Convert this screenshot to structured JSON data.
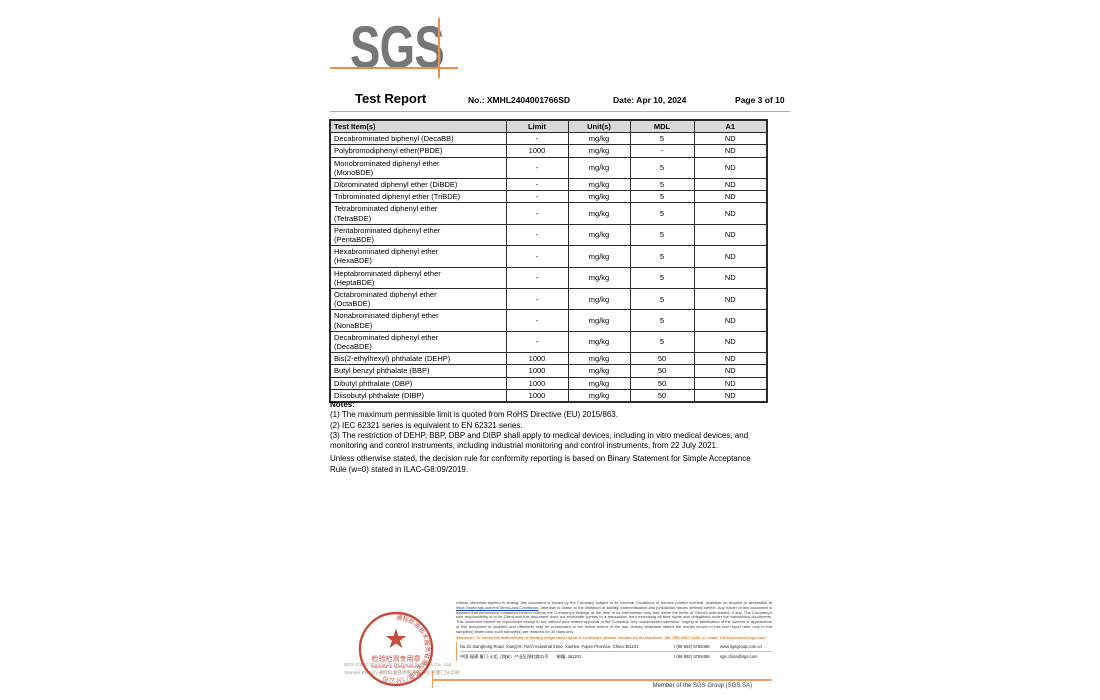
{
  "logo": {
    "text": "SGS"
  },
  "header": {
    "title": "Test Report",
    "report_no": "No.: XMHL2404001766SD",
    "date": "Date: Apr 10, 2024",
    "page": "Page 3 of  10"
  },
  "table": {
    "columns": [
      "Test Item(s)",
      "Limit",
      "Unit(s)",
      "MDL",
      "A1"
    ],
    "rows": [
      {
        "item": "Decabrominated biphenyl (DecaBB)",
        "limit": "-",
        "unit": "mg/kg",
        "mdl": "5",
        "a1": "ND"
      },
      {
        "item": "Polybromodiphenyl ether(PBDE)",
        "limit": "1000",
        "unit": "mg/kg",
        "mdl": "-",
        "a1": "ND"
      },
      {
        "item": "Monobrominated diphenyl ether\n(MonoBDE)",
        "limit": "-",
        "unit": "mg/kg",
        "mdl": "5",
        "a1": "ND"
      },
      {
        "item": "Dibrominated diphenyl ether (DiBDE)",
        "limit": "-",
        "unit": "mg/kg",
        "mdl": "5",
        "a1": "ND"
      },
      {
        "item": "Tribrominated diphenyl ether (TriBDE)",
        "limit": "-",
        "unit": "mg/kg",
        "mdl": "5",
        "a1": "ND"
      },
      {
        "item": "Tetrabrominated diphenyl ether\n(TetraBDE)",
        "limit": "-",
        "unit": "mg/kg",
        "mdl": "5",
        "a1": "ND"
      },
      {
        "item": "Pentabrominated diphenyl ether\n(PentaBDE)",
        "limit": "-",
        "unit": "mg/kg",
        "mdl": "5",
        "a1": "ND"
      },
      {
        "item": "Hexabrominated diphenyl ether\n(HexaBDE)",
        "limit": "-",
        "unit": "mg/kg",
        "mdl": "5",
        "a1": "ND"
      },
      {
        "item": "Heptabrominated diphenyl ether\n(HeptaBDE)",
        "limit": "-",
        "unit": "mg/kg",
        "mdl": "5",
        "a1": "ND"
      },
      {
        "item": "Octabrominated diphenyl ether\n(OctaBDE)",
        "limit": "-",
        "unit": "mg/kg",
        "mdl": "5",
        "a1": "ND"
      },
      {
        "item": "Nonabrominated diphenyl ether\n(NonaBDE)",
        "limit": "-",
        "unit": "mg/kg",
        "mdl": "5",
        "a1": "ND"
      },
      {
        "item": "Decabrominated diphenyl ether\n(DecaBDE)",
        "limit": "-",
        "unit": "mg/kg",
        "mdl": "5",
        "a1": "ND"
      },
      {
        "item": "Bis(2-ethylhexyl) phthalate (DEHP)",
        "limit": "1000",
        "unit": "mg/kg",
        "mdl": "50",
        "a1": "ND"
      },
      {
        "item": "Butyl benzyl phthalate (BBP)",
        "limit": "1000",
        "unit": "mg/kg",
        "mdl": "50",
        "a1": "ND"
      },
      {
        "item": "Dibutyl phthalate (DBP)",
        "limit": "1000",
        "unit": "mg/kg",
        "mdl": "50",
        "a1": "ND"
      },
      {
        "item": "Diisobutyl phthalate (DIBP)",
        "limit": "1000",
        "unit": "mg/kg",
        "mdl": "50",
        "a1": "ND"
      }
    ]
  },
  "notes": {
    "heading": "Notes:",
    "items": [
      "(1) The maximum permissible limit is quoted from RoHS Directive (EU) 2015/863.",
      "(2) IEC 62321 series is equivalent to EN 62321 series.",
      "(3) The restriction of DEHP, BBP, DBP and DIBP shall apply to medical devices, including in vitro medical devices, and monitoring and control instruments, including industrial monitoring and control instruments, from 22 July 2021."
    ],
    "decision_rule": "Unless otherwise stated, the decision rule for conformity reporting is based on Binary Statement for Simple Acceptance Rule (w=0) stated in ILAC-G8:09/2019."
  },
  "footer": {
    "stamp": {
      "star": "★",
      "rim_text": "通标标准技术服务有限公司厦门分公司",
      "line1": "检验检测专用章",
      "line2": "Inspection & Testing Services"
    },
    "company_line1": "SGS-CSTC Standards Technical Services Co., Ltd.",
    "company_line2": "Xiamen Branch 通标标准技术服务有限公司厦门分公司",
    "disclaimer_part1": "Unless otherwise agreed in writing, this document is issued by the Company subject to its General Conditions of Service printed overleaf, available on request or accessible at ",
    "disclaimer_link": "https://www.sgs.com/en/Terms-and-Conditions",
    "disclaimer_part2": ". Attention is drawn to the limitation of liability, indemnification and jurisdiction issues defined therein. Any holder of this document is advised that information contained hereon reflects the Company's findings at the time of its intervention only and within the limits of Client's instructions, if any. The Company's sole responsibility is to its Client and this document does not exonerate parties to a transaction from exercising all their rights and obligations under the transaction documents. This document cannot be reproduced except in full, without prior written approval of the Company. Any unauthorized alteration, forgery or falsification of the content or appearance of this document is unlawful and offenders may be prosecuted to the fullest extent of the law. Unless otherwise stated the results shown in this test report refer only to the sample(s) tested and such sample(s) are retained for 30 days only.",
    "attention": "Attention: To check the authenticity of testing /inspection report & certificate, please contact us at telephone: (86-755) 8307 1443, or email: CN.Doccheck@sgs.com",
    "address_en": "No.31 Xianghong Road, Xiang'An Torch Industrial Zone, Xiamen, Fujian Province, China  361101",
    "address_cn": "中国·福建·厦门·火炬（翔安）产业区翔虹路31号　　邮编: 361101",
    "phone1": "t (86-592) 5765488",
    "phone2": "t (86-592) 5765488",
    "website": "www.sgsgroup.com.cn",
    "email": "sgs.china@sgs.com",
    "member": "Member of the SGS Group (SGS SA)"
  },
  "colors": {
    "accent_orange": "#ef8a50",
    "footer_orange": "#ea9d62",
    "attention_orange": "#e87a22",
    "stamp_red": "#c0392b",
    "logo_gray": "#75787b",
    "table_header_bg": "#d9d9d9"
  }
}
